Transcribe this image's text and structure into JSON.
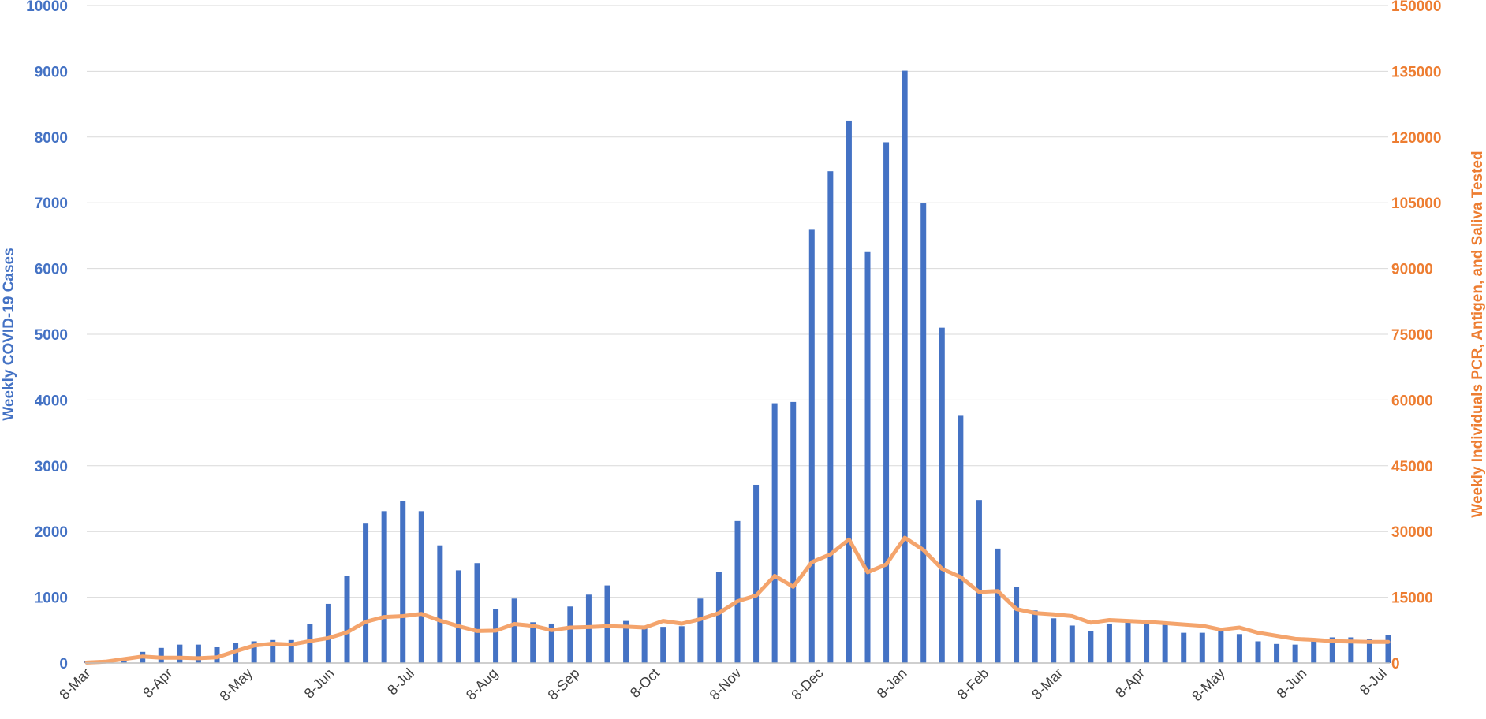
{
  "chart_data": {
    "type": "bar",
    "colors": {
      "bars": "#4472C4",
      "line": "#F4A46C",
      "left_axis": "#4472C4",
      "right_axis": "#ED7D31"
    },
    "x_tick_labels": [
      "8-Mar",
      "8-Apr",
      "8-May",
      "8-Jun",
      "8-Jul",
      "8-Aug",
      "8-Sep",
      "8-Oct",
      "8-Nov",
      "8-Dec",
      "8-Jan",
      "8-Feb",
      "8-Mar",
      "8-Apr",
      "8-May",
      "8-Jun",
      "8-Jul"
    ],
    "x_tick_weeks": [
      0,
      4.4,
      8.7,
      13.1,
      17.4,
      21.9,
      26.3,
      30.6,
      35.0,
      39.4,
      43.9,
      48.3,
      52.3,
      56.7,
      61.0,
      65.4,
      69.7
    ],
    "y_left": {
      "label": "Weekly COVID-19 Cases",
      "ylim": [
        0,
        10000
      ],
      "ticks": [
        "0",
        "1000",
        "2000",
        "3000",
        "4000",
        "5000",
        "6000",
        "7000",
        "8000",
        "9000",
        "10000"
      ]
    },
    "y_right": {
      "label": "Weekly Individuals PCR, Antigen, and Saliva Tested",
      "ylim": [
        0,
        150000
      ],
      "ticks": [
        "0",
        "15000",
        "30000",
        "45000",
        "60000",
        "75000",
        "90000",
        "105000",
        "120000",
        "135000",
        "150000"
      ]
    },
    "grid": true,
    "legend": "none",
    "series": [
      {
        "type": "bar",
        "axis": "left",
        "values": [
          30,
          10,
          70,
          170,
          230,
          280,
          280,
          240,
          310,
          330,
          350,
          350,
          590,
          900,
          1330,
          2120,
          2310,
          2470,
          2310,
          1790,
          1410,
          1520,
          820,
          980,
          620,
          600,
          860,
          1040,
          1180,
          640,
          570,
          550,
          560,
          980,
          1390,
          2160,
          2710,
          3950,
          3970,
          6590,
          7480,
          8250,
          6250,
          7920,
          9010,
          6990,
          5100,
          3760,
          2480,
          1740,
          1160,
          800,
          680,
          570,
          480,
          600,
          620,
          650,
          610,
          460,
          460,
          480,
          440,
          330,
          290,
          280,
          350,
          390,
          390,
          360,
          430
        ]
      },
      {
        "type": "line",
        "axis": "right",
        "values": [
          100,
          300,
          900,
          1500,
          1200,
          1200,
          1100,
          1300,
          2700,
          4000,
          4400,
          4200,
          5000,
          5700,
          7000,
          9400,
          10500,
          10700,
          11200,
          9700,
          8400,
          7300,
          7400,
          8900,
          8500,
          7500,
          8100,
          8200,
          8400,
          8300,
          8100,
          9600,
          9000,
          10000,
          11400,
          14100,
          15400,
          19900,
          17400,
          23000,
          24800,
          28200,
          20700,
          22500,
          28600,
          25800,
          21500,
          19600,
          16200,
          16400,
          12300,
          11400,
          11100,
          10700,
          9200,
          9800,
          9600,
          9400,
          9100,
          8800,
          8500,
          7600,
          8100,
          6900,
          6200,
          5500,
          5300,
          5000,
          4900,
          4800,
          4800
        ]
      }
    ]
  }
}
